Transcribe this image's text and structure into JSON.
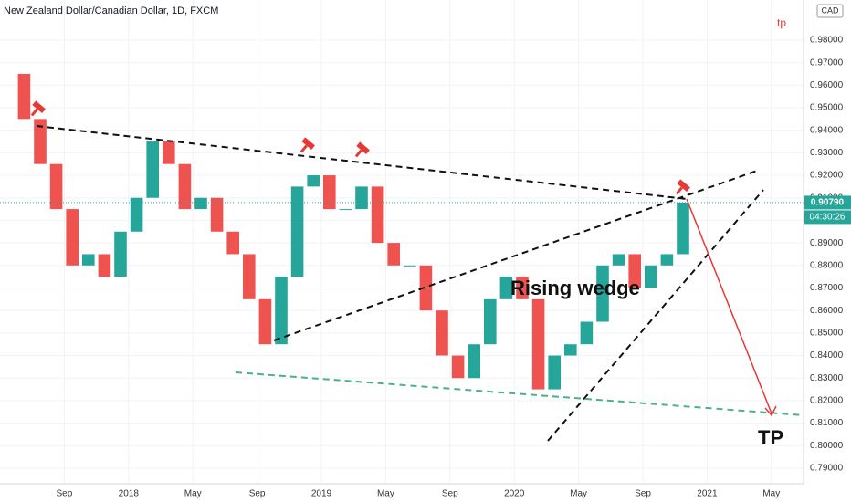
{
  "chart_data": {
    "type": "candlestick",
    "title": "New Zealand Dollar/Canadian Dollar, 1D, FXCM",
    "currency": "CAD",
    "annotations": [
      "tp",
      "Rising wedge",
      "TP"
    ],
    "last_price": {
      "value": 0.9079,
      "label": "0.90790"
    },
    "countdown": "04:30:26",
    "x": [
      "2017-06",
      "2017-07",
      "2017-08",
      "2017-09",
      "2017-10",
      "2017-11",
      "2017-12",
      "2018-01",
      "2018-02",
      "2018-03",
      "2018-04",
      "2018-05",
      "2018-06",
      "2018-07",
      "2018-08",
      "2018-09",
      "2018-10",
      "2018-11",
      "2018-12",
      "2019-01",
      "2019-02",
      "2019-03",
      "2019-04",
      "2019-05",
      "2019-06",
      "2019-07",
      "2019-08",
      "2019-09",
      "2019-10",
      "2019-11",
      "2019-12",
      "2020-01",
      "2020-02",
      "2020-03",
      "2020-04",
      "2020-05",
      "2020-06",
      "2020-07",
      "2020-08",
      "2020-09",
      "2020-10",
      "2020-11",
      "2020-12"
    ],
    "values": [
      0.965,
      0.945,
      0.925,
      0.905,
      0.88,
      0.885,
      0.875,
      0.895,
      0.91,
      0.935,
      0.925,
      0.905,
      0.91,
      0.895,
      0.885,
      0.865,
      0.845,
      0.875,
      0.915,
      0.92,
      0.905,
      0.905,
      0.915,
      0.89,
      0.88,
      0.88,
      0.86,
      0.84,
      0.83,
      0.845,
      0.865,
      0.875,
      0.865,
      0.825,
      0.84,
      0.845,
      0.855,
      0.88,
      0.885,
      0.87,
      0.88,
      0.885,
      0.9079
    ],
    "up_color": "#26a69a",
    "down_color": "#ef5350",
    "xlim": [
      "2017-05",
      "2021-07"
    ],
    "xticks": [
      {
        "value": "2017-09",
        "label": "Sep"
      },
      {
        "value": "2018-01",
        "label": "2018"
      },
      {
        "value": "2018-05",
        "label": "May"
      },
      {
        "value": "2018-09",
        "label": "Sep"
      },
      {
        "value": "2019-01",
        "label": "2019"
      },
      {
        "value": "2019-05",
        "label": "May"
      },
      {
        "value": "2019-09",
        "label": "Sep"
      },
      {
        "value": "2020-01",
        "label": "2020"
      },
      {
        "value": "2020-05",
        "label": "May"
      },
      {
        "value": "2020-09",
        "label": "Sep"
      },
      {
        "value": "2021-01",
        "label": "2021"
      },
      {
        "value": "2021-05",
        "label": "May"
      }
    ],
    "ylim": [
      0.7831,
      0.9978
    ],
    "yticks": [
      {
        "value": 0.79,
        "label": "0.79000"
      },
      {
        "value": 0.8,
        "label": "0.80000"
      },
      {
        "value": 0.81,
        "label": "0.81000"
      },
      {
        "value": 0.82,
        "label": "0.82000"
      },
      {
        "value": 0.83,
        "label": "0.83000"
      },
      {
        "value": 0.84,
        "label": "0.84000"
      },
      {
        "value": 0.85,
        "label": "0.85000"
      },
      {
        "value": 0.86,
        "label": "0.86000"
      },
      {
        "value": 0.87,
        "label": "0.87000"
      },
      {
        "value": 0.88,
        "label": "0.88000"
      },
      {
        "value": 0.89,
        "label": "0.89000"
      },
      {
        "value": 0.9,
        "label": "0.90000"
      },
      {
        "value": 0.91,
        "label": "0.91000"
      },
      {
        "value": 0.92,
        "label": "0.92000"
      },
      {
        "value": 0.93,
        "label": "0.93000"
      },
      {
        "value": 0.94,
        "label": "0.94000"
      },
      {
        "value": 0.95,
        "label": "0.95000"
      },
      {
        "value": 0.96,
        "label": "0.96000"
      },
      {
        "value": 0.97,
        "label": "0.97000"
      },
      {
        "value": 0.98,
        "label": "0.98000"
      }
    ],
    "grid": true
  }
}
